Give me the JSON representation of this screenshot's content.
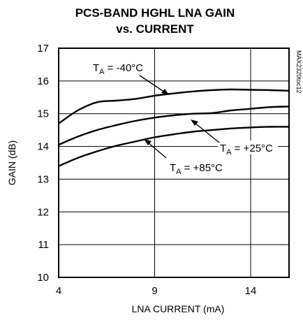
{
  "chart_data": {
    "type": "line",
    "title_line1": "PCS-BAND HGHL LNA GAIN",
    "title_line2": "vs. CURRENT",
    "xlabel": "LNA CURRENT (mA)",
    "ylabel": "GAIN (dB)",
    "xlim": [
      4,
      16
    ],
    "ylim": [
      10,
      17
    ],
    "xticks": [
      "4",
      "9",
      "14"
    ],
    "yticks": [
      "17",
      "16",
      "15",
      "14",
      "13",
      "12",
      "11",
      "10"
    ],
    "grid": true,
    "watermark": "MAX2320toc12",
    "series": [
      {
        "name": "T_A = -40°C",
        "x": [
          4,
          5,
          6,
          7,
          8,
          9,
          10,
          11,
          12,
          13,
          14,
          15,
          16
        ],
        "y": [
          14.7,
          15.1,
          15.35,
          15.4,
          15.45,
          15.55,
          15.62,
          15.68,
          15.72,
          15.74,
          15.73,
          15.72,
          15.7
        ]
      },
      {
        "name": "T_A = +25°C",
        "x": [
          4,
          5,
          6,
          7,
          8,
          9,
          10,
          11,
          12,
          13,
          14,
          15,
          16
        ],
        "y": [
          14.05,
          14.3,
          14.5,
          14.65,
          14.78,
          14.88,
          14.95,
          15.0,
          15.02,
          15.1,
          15.15,
          15.2,
          15.22
        ]
      },
      {
        "name": "T_A = +85°C",
        "x": [
          4,
          5,
          6,
          7,
          8,
          9,
          10,
          11,
          12,
          13,
          14,
          15,
          16
        ],
        "y": [
          13.4,
          13.65,
          13.85,
          14.02,
          14.15,
          14.28,
          14.37,
          14.45,
          14.5,
          14.55,
          14.58,
          14.6,
          14.6
        ]
      }
    ],
    "annotations": [
      {
        "main": "T",
        "sub": "A",
        "rest": " = -40°C"
      },
      {
        "main": "T",
        "sub": "A",
        "rest": " = +25°C"
      },
      {
        "main": "T",
        "sub": "A",
        "rest": " = +85°C"
      }
    ]
  }
}
